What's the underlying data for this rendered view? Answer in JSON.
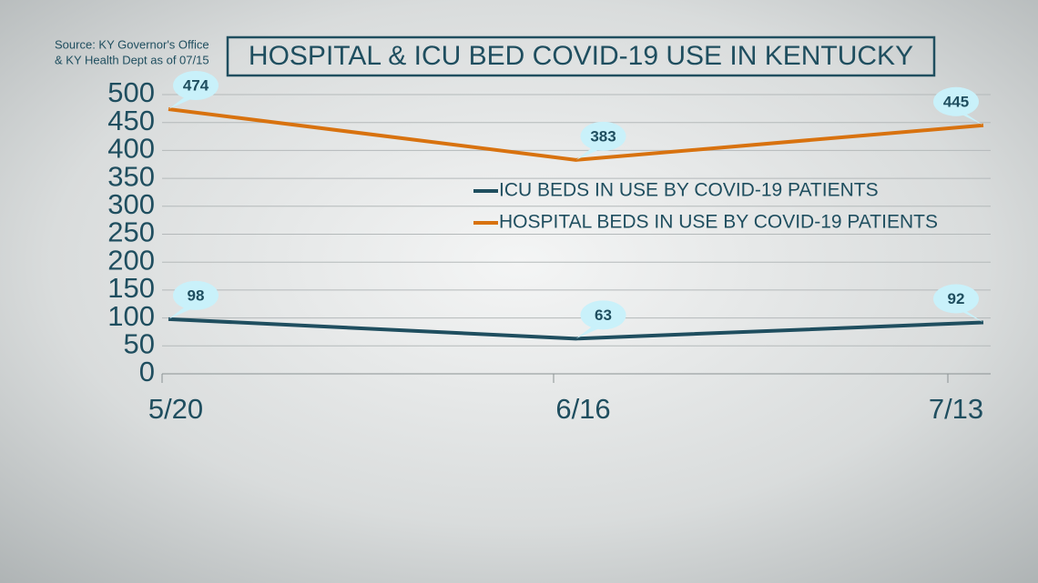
{
  "chart_data": {
    "type": "line",
    "title": "HOSPITAL & ICU BED COVID-19 USE IN KENTUCKY",
    "source": [
      "Source: KY Governor's Office",
      "& KY Health Dept as of 07/15"
    ],
    "categories": [
      "5/20",
      "6/16",
      "7/13"
    ],
    "series": [
      {
        "name": "ICU BEDS IN USE BY COVID-19 PATIENTS",
        "color": "#1f4e5f",
        "values": [
          98,
          63,
          92
        ]
      },
      {
        "name": "HOSPITAL BEDS IN USE BY COVID-19 PATIENTS",
        "color": "#d8720f",
        "values": [
          474,
          383,
          445
        ]
      }
    ],
    "ylim": [
      0,
      500
    ],
    "yticks": [
      0,
      50,
      100,
      150,
      200,
      250,
      300,
      350,
      400,
      450,
      500
    ],
    "grid": true
  }
}
